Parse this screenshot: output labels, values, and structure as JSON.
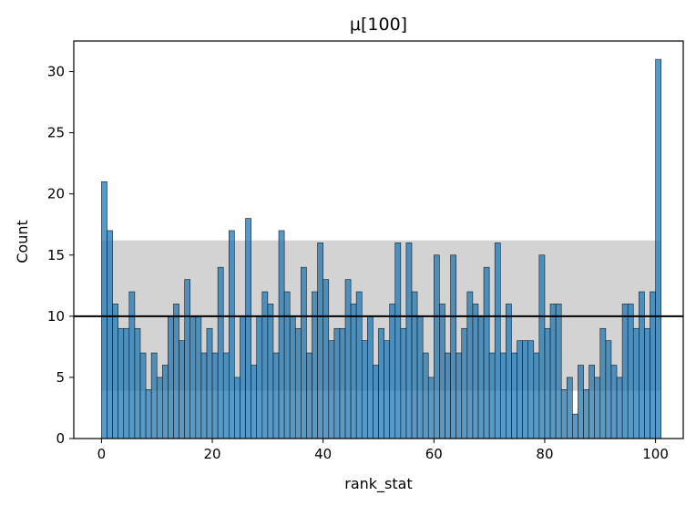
{
  "chart_data": {
    "type": "bar",
    "title": "μ[100]",
    "xlabel": "rank_stat",
    "ylabel": "Count",
    "xlim": [
      -5,
      105
    ],
    "ylim": [
      0,
      32.5
    ],
    "xticks": [
      0,
      20,
      40,
      60,
      80,
      100
    ],
    "yticks": [
      0,
      5,
      10,
      15,
      20,
      25,
      30
    ],
    "bin_start": 0,
    "bin_width": 1,
    "values": [
      21,
      17,
      11,
      9,
      9,
      12,
      9,
      7,
      4,
      7,
      5,
      6,
      10,
      11,
      8,
      13,
      10,
      10,
      7,
      9,
      7,
      14,
      7,
      17,
      5,
      10,
      18,
      6,
      10,
      12,
      11,
      7,
      17,
      12,
      10,
      9,
      14,
      7,
      12,
      16,
      13,
      8,
      9,
      9,
      13,
      11,
      12,
      8,
      10,
      6,
      9,
      8,
      11,
      16,
      9,
      16,
      12,
      10,
      7,
      5,
      15,
      11,
      7,
      15,
      7,
      9,
      12,
      11,
      10,
      14,
      7,
      16,
      7,
      11,
      7,
      8,
      8,
      8,
      7,
      15,
      9,
      11,
      11,
      4,
      5,
      2,
      6,
      4,
      6,
      5,
      9,
      8,
      6,
      5,
      11,
      11,
      9,
      12,
      9,
      12,
      31
    ],
    "reference_line": 10,
    "band": [
      3.9,
      16.2
    ],
    "grid": false,
    "bar_color": "#1f77b4",
    "band_color": "#d3d3d3",
    "line_color": "#000000"
  }
}
